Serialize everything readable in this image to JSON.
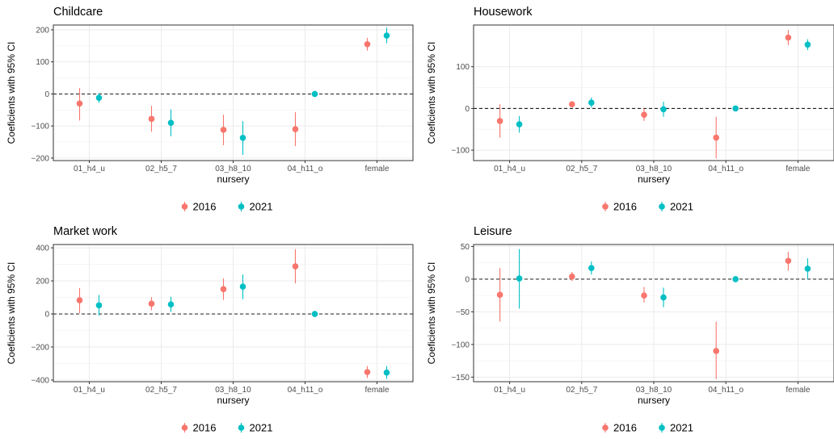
{
  "legend": {
    "items": [
      {
        "label": "2016",
        "color": "#F8766D"
      },
      {
        "label": "2021",
        "color": "#00BFC4"
      }
    ]
  },
  "chart_data": [
    {
      "type": "scatter",
      "title": "Childcare",
      "xlabel": "nursery",
      "ylabel": "Coeficients with 95% CI",
      "categories": [
        "01_h4_u",
        "02_h5_7",
        "03_h8_10",
        "04_h11_o",
        "female"
      ],
      "ylim": [
        -208,
        215
      ],
      "yticks": [
        200,
        100,
        0,
        -100,
        -200
      ],
      "ytick_labels": [
        "200",
        "100",
        "0",
        "−100",
        "−200"
      ],
      "grid": true,
      "legend_position": "bottom",
      "series": [
        {
          "name": "2016",
          "color": "#F8766D",
          "values": [
            -30,
            -78,
            -112,
            -110,
            155
          ],
          "lower": [
            -83,
            -118,
            -160,
            -163,
            135
          ],
          "upper": [
            18,
            -37,
            -65,
            -57,
            175
          ]
        },
        {
          "name": "2021",
          "color": "#00BFC4",
          "values": [
            -12,
            -90,
            -137,
            0,
            182
          ],
          "lower": [
            -28,
            -132,
            -190,
            -2,
            158
          ],
          "upper": [
            3,
            -48,
            -85,
            2,
            207
          ]
        }
      ]
    },
    {
      "type": "scatter",
      "title": "Housework",
      "xlabel": "nursery",
      "ylabel": "Coeficients with 95% CI",
      "categories": [
        "01_h4_u",
        "02_h5_7",
        "03_h8_10",
        "04_h11_o",
        "female"
      ],
      "ylim": [
        -125,
        200
      ],
      "yticks": [
        100,
        0,
        -100
      ],
      "ytick_labels": [
        "100",
        "0",
        "−100"
      ],
      "grid": true,
      "legend_position": "bottom",
      "series": [
        {
          "name": "2016",
          "color": "#F8766D",
          "values": [
            -30,
            10,
            -15,
            -70,
            170
          ],
          "lower": [
            -70,
            5,
            -30,
            -120,
            152
          ],
          "upper": [
            10,
            15,
            0,
            -20,
            188
          ]
        },
        {
          "name": "2021",
          "color": "#00BFC4",
          "values": [
            -38,
            14,
            -2,
            0,
            153
          ],
          "lower": [
            -58,
            2,
            -20,
            -2,
            140
          ],
          "upper": [
            -18,
            26,
            16,
            2,
            166
          ]
        }
      ]
    },
    {
      "type": "scatter",
      "title": "Market work",
      "xlabel": "nursery",
      "ylabel": "Coeficients with 95% CI",
      "categories": [
        "01_h4_u",
        "02_h5_7",
        "03_h8_10",
        "04_h11_o",
        "female"
      ],
      "ylim": [
        -410,
        420
      ],
      "yticks": [
        400,
        200,
        0,
        -200,
        -400
      ],
      "ytick_labels": [
        "400",
        "200",
        "0",
        "−200",
        "−400"
      ],
      "grid": true,
      "legend_position": "bottom",
      "series": [
        {
          "name": "2016",
          "color": "#F8766D",
          "values": [
            83,
            62,
            150,
            288,
            -352
          ],
          "lower": [
            5,
            22,
            85,
            185,
            -388
          ],
          "upper": [
            157,
            102,
            215,
            392,
            -315
          ]
        },
        {
          "name": "2021",
          "color": "#00BFC4",
          "values": [
            52,
            58,
            165,
            0,
            -355
          ],
          "lower": [
            -10,
            12,
            90,
            -3,
            -393
          ],
          "upper": [
            115,
            104,
            238,
            3,
            -315
          ]
        }
      ]
    },
    {
      "type": "scatter",
      "title": "Leisure",
      "xlabel": "nursery",
      "ylabel": "Coeficients with 95% CI",
      "categories": [
        "01_h4_u",
        "02_h5_7",
        "03_h8_10",
        "04_h11_o",
        "female"
      ],
      "ylim": [
        -157,
        53
      ],
      "yticks": [
        50,
        0,
        -50,
        -100,
        -150
      ],
      "ytick_labels": [
        "50",
        "0",
        "−50",
        "−100",
        "−150"
      ],
      "grid": true,
      "legend_position": "bottom",
      "series": [
        {
          "name": "2016",
          "color": "#F8766D",
          "values": [
            -24,
            4,
            -25,
            -110,
            28
          ],
          "lower": [
            -65,
            -3,
            -36,
            -153,
            13
          ],
          "upper": [
            17,
            11,
            -12,
            -65,
            42
          ]
        },
        {
          "name": "2021",
          "color": "#00BFC4",
          "values": [
            1,
            17,
            -28,
            0,
            16
          ],
          "lower": [
            -45,
            7,
            -43,
            -2,
            0
          ],
          "upper": [
            46,
            27,
            -13,
            2,
            32
          ]
        }
      ]
    }
  ]
}
